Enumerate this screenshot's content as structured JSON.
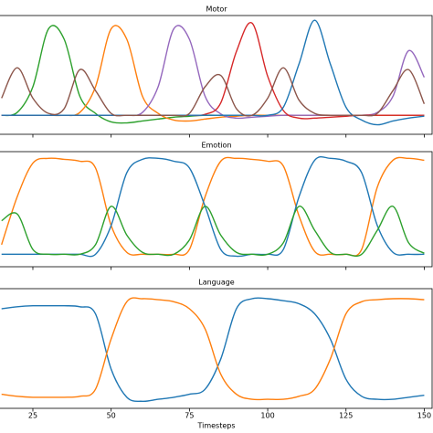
{
  "chart_data": [
    {
      "type": "line",
      "title": "Motor",
      "x": [
        15,
        20,
        25,
        30,
        35,
        40,
        45,
        50,
        55,
        60,
        65,
        70,
        75,
        80,
        85,
        90,
        95,
        100,
        105,
        110,
        115,
        120,
        125,
        130,
        135,
        140,
        145,
        150
      ],
      "xlim": [
        14.5,
        152.5
      ],
      "xticks": [
        25,
        50,
        75,
        100,
        125,
        150
      ],
      "ylim": [
        -0.2,
        1.05
      ],
      "series": [
        {
          "color": "#2ca02c",
          "values": [
            0,
            0.03,
            0.3,
            0.91,
            0.8,
            0.2,
            0.02,
            -0.07,
            -0.08,
            -0.06,
            -0.04,
            -0.02,
            -0.01,
            0,
            0,
            0,
            0,
            0,
            0,
            0,
            0,
            0,
            0,
            0,
            0,
            0,
            0,
            0
          ]
        },
        {
          "color": "#ff7f0e",
          "values": [
            0,
            0,
            0,
            0,
            0,
            0.03,
            0.3,
            0.91,
            0.8,
            0.2,
            0.02,
            -0.05,
            -0.06,
            -0.04,
            -0.02,
            -0.01,
            0,
            0,
            0,
            0,
            0,
            0,
            0,
            0,
            0,
            0,
            0,
            0
          ]
        },
        {
          "color": "#9467bd",
          "values": [
            0,
            0,
            0,
            0,
            0,
            0,
            0,
            0,
            0,
            0.03,
            0.3,
            0.91,
            0.8,
            0.2,
            0.015,
            -0.03,
            -0.02,
            -0.01,
            0,
            0,
            0,
            0,
            0,
            0,
            0.03,
            0.2,
            0.68,
            0.4
          ]
        },
        {
          "color": "#d62728",
          "values": [
            0,
            0,
            0,
            0,
            0,
            0,
            0,
            0,
            0,
            0,
            0,
            0,
            0,
            0.01,
            0.13,
            0.67,
            0.97,
            0.41,
            0.05,
            -0.03,
            -0.03,
            -0.02,
            -0.01,
            0,
            0,
            0,
            0,
            0
          ]
        },
        {
          "color": "#1f77b4",
          "values": [
            0,
            0,
            0,
            0,
            0,
            0,
            0,
            0,
            0,
            0,
            0,
            0,
            0,
            0,
            0,
            0,
            0,
            0,
            0.085,
            0.54,
            1,
            0.54,
            0.085,
            -0.05,
            -0.1,
            -0.06,
            -0.03,
            -0.01
          ]
        },
        {
          "color": "#8c564b",
          "values": [
            0.18,
            0.5,
            0.18,
            0.02,
            0.07,
            0.48,
            0.26,
            0.02,
            0,
            0,
            0,
            0,
            0.02,
            0.3,
            0.42,
            0.07,
            0,
            0.18,
            0.5,
            0.16,
            0.02,
            0,
            0,
            0,
            0.02,
            0.26,
            0.48,
            0.12
          ]
        }
      ]
    },
    {
      "type": "line",
      "title": "Emotion",
      "x": [
        15,
        20,
        25,
        30,
        35,
        40,
        45,
        50,
        55,
        60,
        65,
        70,
        75,
        80,
        85,
        90,
        95,
        100,
        105,
        110,
        115,
        120,
        125,
        130,
        135,
        140,
        145,
        150
      ],
      "xlim": [
        14.5,
        152.5
      ],
      "xticks": [
        25,
        50,
        75,
        100,
        125,
        150
      ],
      "ylim": [
        -0.13,
        1.07
      ],
      "series": [
        {
          "color": "#ff7f0e",
          "values": [
            0.1,
            0.6,
            0.95,
            1,
            0.99,
            0.97,
            0.9,
            0.3,
            0.02,
            0,
            0,
            0,
            0.05,
            0.6,
            0.97,
            1,
            0.99,
            0.97,
            0.92,
            0.4,
            0.03,
            0,
            0,
            0.05,
            0.7,
            0.98,
            1,
            0.98
          ]
        },
        {
          "color": "#1f77b4",
          "values": [
            0,
            0,
            0,
            0,
            0,
            0,
            0,
            0.3,
            0.85,
            0.99,
            1,
            0.97,
            0.9,
            0.5,
            0.05,
            -0.02,
            0,
            0,
            0.05,
            0.6,
            0.98,
            1,
            0.97,
            0.85,
            0.3,
            0.02,
            0,
            0
          ]
        },
        {
          "color": "#2ca02c",
          "values": [
            0.35,
            0.42,
            0.05,
            0,
            0,
            0,
            0.1,
            0.5,
            0.2,
            0.02,
            0,
            0,
            0.15,
            0.5,
            0.2,
            0.02,
            0,
            0,
            0.12,
            0.5,
            0.25,
            0.02,
            0,
            0,
            0.25,
            0.5,
            0.12,
            0.01
          ]
        }
      ]
    },
    {
      "type": "line",
      "title": "Language",
      "xlabel": "Timesteps",
      "x": [
        15,
        20,
        25,
        30,
        35,
        40,
        45,
        50,
        55,
        60,
        65,
        70,
        75,
        80,
        85,
        90,
        95,
        100,
        105,
        110,
        115,
        120,
        125,
        130,
        135,
        140,
        145,
        150
      ],
      "xlim": [
        14.5,
        152.5
      ],
      "xticks": [
        25,
        50,
        75,
        100,
        125,
        150
      ],
      "ylim": [
        -0.09,
        1.1
      ],
      "series": [
        {
          "color": "#1f77b4",
          "values": [
            0.9,
            0.92,
            0.93,
            0.93,
            0.93,
            0.92,
            0.85,
            0.3,
            0.02,
            -0.02,
            0,
            0.02,
            0.05,
            0.1,
            0.4,
            0.9,
            1,
            1,
            0.98,
            0.95,
            0.85,
            0.6,
            0.2,
            0.03,
            0,
            0,
            0.02,
            0.04
          ]
        },
        {
          "color": "#ff7f0e",
          "values": [
            0.05,
            0.03,
            0.02,
            0.02,
            0.02,
            0.03,
            0.1,
            0.6,
            0.97,
            1,
            0.99,
            0.97,
            0.9,
            0.7,
            0.25,
            0.05,
            0,
            0,
            0,
            0.03,
            0.1,
            0.4,
            0.85,
            0.97,
            0.99,
            1,
            1,
            0.99
          ]
        }
      ]
    }
  ]
}
